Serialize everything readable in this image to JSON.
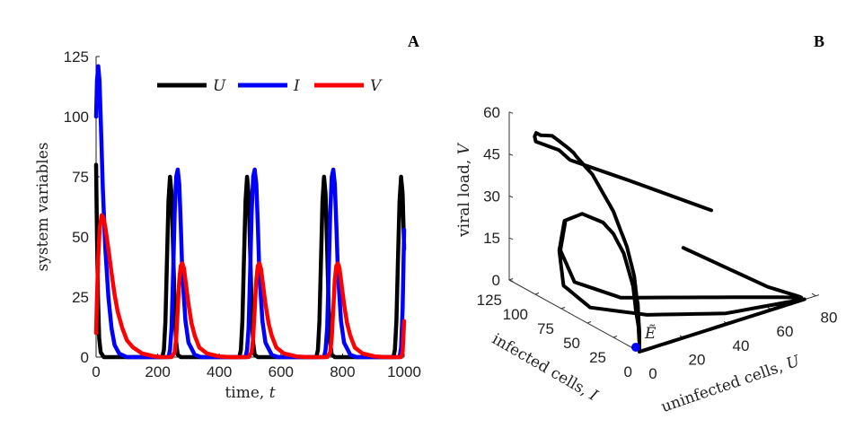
{
  "chart_data": [
    {
      "panel": "A",
      "type": "line",
      "xlabel": {
        "text": "time, ",
        "var": "t"
      },
      "ylabel": "system variables",
      "xlim": [
        0,
        1000
      ],
      "ylim": [
        0,
        125
      ],
      "xticks": [
        "0",
        "200",
        "400",
        "600",
        "800",
        "1000"
      ],
      "yticks": [
        "0",
        "25",
        "50",
        "75",
        "100",
        "125"
      ],
      "grid": false,
      "legend_placement": "top",
      "series": [
        {
          "name": "U",
          "color": "#000000",
          "points": [
            [
              0,
              80
            ],
            [
              3,
              50
            ],
            [
              6,
              25
            ],
            [
              10,
              8
            ],
            [
              15,
              2
            ],
            [
              25,
              0
            ],
            [
              215,
              0
            ],
            [
              220,
              3
            ],
            [
              225,
              15
            ],
            [
              230,
              40
            ],
            [
              235,
              65
            ],
            [
              240,
              75
            ],
            [
              245,
              68
            ],
            [
              250,
              45
            ],
            [
              255,
              20
            ],
            [
              260,
              6
            ],
            [
              265,
              1
            ],
            [
              275,
              0
            ],
            [
              465,
              0
            ],
            [
              470,
              3
            ],
            [
              475,
              15
            ],
            [
              480,
              40
            ],
            [
              485,
              65
            ],
            [
              490,
              75
            ],
            [
              495,
              68
            ],
            [
              500,
              45
            ],
            [
              505,
              20
            ],
            [
              510,
              6
            ],
            [
              515,
              1
            ],
            [
              525,
              0
            ],
            [
              715,
              0
            ],
            [
              720,
              3
            ],
            [
              725,
              15
            ],
            [
              730,
              40
            ],
            [
              735,
              65
            ],
            [
              740,
              75
            ],
            [
              745,
              68
            ],
            [
              750,
              45
            ],
            [
              755,
              20
            ],
            [
              760,
              6
            ],
            [
              765,
              1
            ],
            [
              775,
              0
            ],
            [
              965,
              0
            ],
            [
              970,
              3
            ],
            [
              975,
              15
            ],
            [
              980,
              40
            ],
            [
              985,
              65
            ],
            [
              990,
              75
            ],
            [
              995,
              68
            ],
            [
              1000,
              45
            ]
          ]
        },
        {
          "name": "I",
          "color": "#0000ff",
          "points": [
            [
              0,
              100
            ],
            [
              3,
              115
            ],
            [
              7,
              121
            ],
            [
              11,
              115
            ],
            [
              16,
              95
            ],
            [
              22,
              70
            ],
            [
              30,
              45
            ],
            [
              40,
              25
            ],
            [
              50,
              12
            ],
            [
              60,
              5
            ],
            [
              75,
              1.5
            ],
            [
              100,
              0
            ],
            [
              235,
              0
            ],
            [
              240,
              3
            ],
            [
              245,
              12
            ],
            [
              250,
              35
            ],
            [
              255,
              60
            ],
            [
              260,
              75
            ],
            [
              265,
              78
            ],
            [
              270,
              72
            ],
            [
              275,
              55
            ],
            [
              280,
              35
            ],
            [
              290,
              15
            ],
            [
              300,
              6
            ],
            [
              320,
              1
            ],
            [
              340,
              0
            ],
            [
              485,
              0
            ],
            [
              490,
              3
            ],
            [
              495,
              12
            ],
            [
              500,
              35
            ],
            [
              505,
              60
            ],
            [
              510,
              75
            ],
            [
              515,
              78
            ],
            [
              520,
              72
            ],
            [
              525,
              55
            ],
            [
              530,
              35
            ],
            [
              540,
              15
            ],
            [
              550,
              6
            ],
            [
              570,
              1
            ],
            [
              590,
              0
            ],
            [
              740,
              0
            ],
            [
              745,
              3
            ],
            [
              750,
              12
            ],
            [
              755,
              35
            ],
            [
              760,
              60
            ],
            [
              765,
              75
            ],
            [
              770,
              78
            ],
            [
              775,
              72
            ],
            [
              780,
              55
            ],
            [
              785,
              35
            ],
            [
              795,
              15
            ],
            [
              805,
              6
            ],
            [
              825,
              1
            ],
            [
              845,
              0
            ],
            [
              985,
              0
            ],
            [
              990,
              4
            ],
            [
              995,
              20
            ],
            [
              1000,
              53
            ]
          ]
        },
        {
          "name": "V",
          "color": "#ff0000",
          "points": [
            [
              0,
              10
            ],
            [
              3,
              25
            ],
            [
              7,
              42
            ],
            [
              12,
              54
            ],
            [
              18,
              59
            ],
            [
              24,
              58
            ],
            [
              30,
              54
            ],
            [
              40,
              45
            ],
            [
              50,
              35
            ],
            [
              60,
              26
            ],
            [
              70,
              19
            ],
            [
              85,
              12
            ],
            [
              100,
              7
            ],
            [
              120,
              4
            ],
            [
              150,
              1.5
            ],
            [
              190,
              0.3
            ],
            [
              220,
              0
            ],
            [
              245,
              0
            ],
            [
              255,
              2
            ],
            [
              260,
              8
            ],
            [
              265,
              20
            ],
            [
              270,
              32
            ],
            [
              275,
              38
            ],
            [
              280,
              39
            ],
            [
              285,
              37
            ],
            [
              290,
              32
            ],
            [
              300,
              22
            ],
            [
              310,
              14
            ],
            [
              320,
              9
            ],
            [
              335,
              4
            ],
            [
              360,
              1.5
            ],
            [
              400,
              0.3
            ],
            [
              440,
              0
            ],
            [
              495,
              0
            ],
            [
              505,
              2
            ],
            [
              510,
              8
            ],
            [
              515,
              20
            ],
            [
              520,
              32
            ],
            [
              525,
              38
            ],
            [
              530,
              39
            ],
            [
              535,
              37
            ],
            [
              540,
              32
            ],
            [
              550,
              22
            ],
            [
              560,
              14
            ],
            [
              570,
              9
            ],
            [
              585,
              4
            ],
            [
              610,
              1.5
            ],
            [
              650,
              0.3
            ],
            [
              690,
              0
            ],
            [
              750,
              0
            ],
            [
              760,
              2
            ],
            [
              765,
              8
            ],
            [
              770,
              20
            ],
            [
              775,
              32
            ],
            [
              780,
              38
            ],
            [
              785,
              39
            ],
            [
              790,
              37
            ],
            [
              795,
              32
            ],
            [
              805,
              22
            ],
            [
              815,
              14
            ],
            [
              825,
              9
            ],
            [
              840,
              4
            ],
            [
              865,
              1.5
            ],
            [
              905,
              0.3
            ],
            [
              945,
              0
            ],
            [
              990,
              0
            ],
            [
              995,
              2
            ],
            [
              1000,
              15
            ]
          ]
        }
      ]
    },
    {
      "panel": "B",
      "type": "line3d",
      "source": "phase portrait of panel A series (U, I, V)",
      "xlabel": {
        "text": "uninfected cells, ",
        "var": "U"
      },
      "ylabel": {
        "text": "infected cells, ",
        "var": "I"
      },
      "zlabel": {
        "text": "viral load, ",
        "var": "V"
      },
      "xlim": [
        0,
        80
      ],
      "ylim": [
        0,
        125
      ],
      "zlim": [
        0,
        60
      ],
      "xticks": [
        "0",
        "20",
        "40",
        "60",
        "80"
      ],
      "yticks": [
        "0",
        "25",
        "50",
        "75",
        "100",
        "125"
      ],
      "zticks": [
        "0",
        "15",
        "30",
        "45",
        "60"
      ],
      "line_color": "#000000",
      "equilibrium": {
        "label": "Ẽ",
        "U": 0,
        "I": 0,
        "V": 0,
        "color": "#0000ff"
      }
    }
  ],
  "panel_labels": {
    "a": "A",
    "b": "B"
  }
}
